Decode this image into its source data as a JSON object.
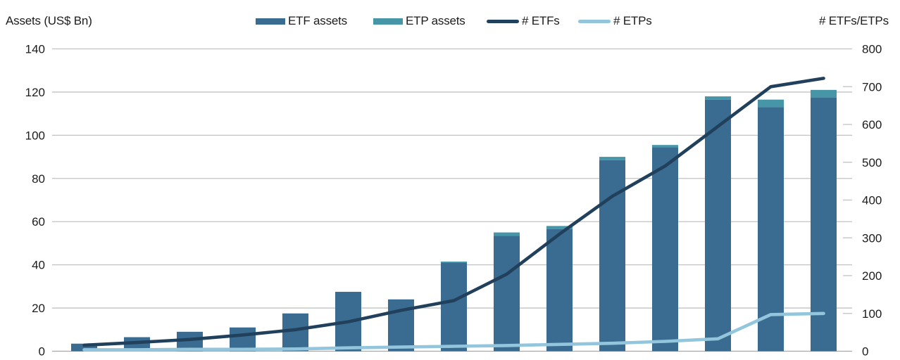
{
  "header": {
    "left_axis_title": "Assets (US$ Bn)",
    "right_axis_title": "# ETFs/ETPs"
  },
  "colors": {
    "etf_bar": "#3a6b90",
    "etp_bar": "#4796a7",
    "etf_line": "#21405b",
    "etp_line": "#93c6dc",
    "gridline": "#c2c2c2",
    "axis_line": "#a8a8a8",
    "text": "#1c1c1c",
    "background": "#ffffff"
  },
  "chart_data": {
    "type": "combo (stacked bar + line, dual axis)",
    "num_groups": 15,
    "x_axis_labels_visible": false,
    "grid": "horizontal gridlines at left-axis ticks",
    "legend_position": "top-center",
    "left_axis": {
      "title": "Assets (US$ Bn)",
      "min": 0,
      "max": 140,
      "step": 20,
      "ticks": [
        0,
        20,
        40,
        60,
        80,
        100,
        120,
        140
      ]
    },
    "right_axis": {
      "title": "# ETFs/ETPs",
      "min": 0,
      "max": 800,
      "step": 100,
      "ticks": [
        0,
        100,
        200,
        300,
        400,
        500,
        600,
        700,
        800
      ]
    },
    "series": [
      {
        "name": "ETF assets",
        "type": "bar",
        "axis": "left",
        "color": "#3a6b90",
        "values": [
          3.5,
          6.5,
          9,
          11,
          17.5,
          27.5,
          24,
          41,
          53.5,
          56.5,
          88.5,
          94.5,
          116.5,
          113,
          117.5
        ]
      },
      {
        "name": "ETP assets",
        "type": "bar-stacked-on-top",
        "axis": "left",
        "color": "#4796a7",
        "values": [
          0,
          0,
          0,
          0,
          0,
          0,
          0,
          0.5,
          1.5,
          1.5,
          1.5,
          1,
          1.5,
          3.5,
          3.5
        ]
      },
      {
        "name": "# ETFs",
        "type": "line",
        "axis": "right",
        "color": "#21405b",
        "values": [
          16,
          23,
          31,
          43,
          57,
          78,
          108,
          134,
          204,
          310,
          410,
          490,
          595,
          700,
          722
        ]
      },
      {
        "name": "# ETPs",
        "type": "line",
        "axis": "right",
        "color": "#93c6dc",
        "values": [
          4,
          4,
          5,
          5,
          6,
          9,
          11,
          13,
          15,
          18,
          21,
          26,
          33,
          97,
          100
        ]
      }
    ]
  }
}
